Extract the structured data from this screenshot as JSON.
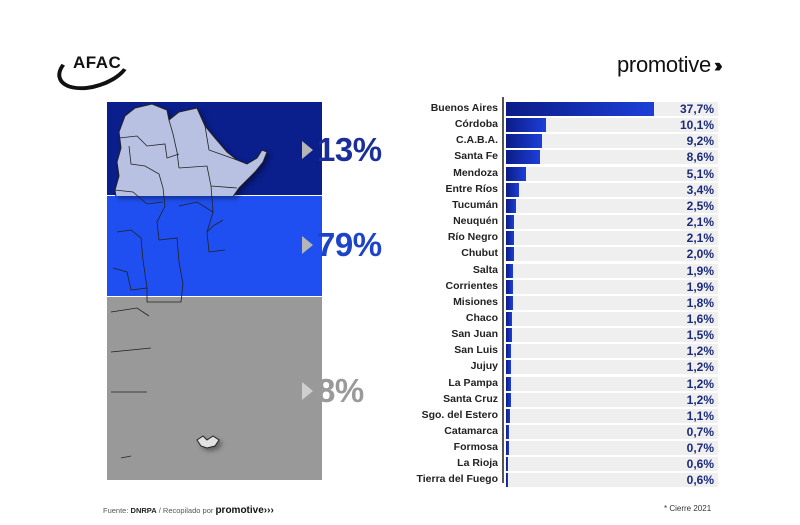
{
  "header": {
    "left_logo": "AFAC",
    "right_logo": "promotive",
    "right_logo_mark": "›››"
  },
  "map": {
    "regions": [
      {
        "name": "north",
        "label": "13%",
        "color": "#0a1e8c",
        "label_color": "#1a2f99"
      },
      {
        "name": "center",
        "label": "79%",
        "color": "#1f4ff0",
        "label_color": "#1d43c9"
      },
      {
        "name": "south",
        "label": "8%",
        "color": "#999999",
        "label_color": "#9a9a9a"
      }
    ],
    "colors": {
      "north_provinces": "#b9c1e2",
      "center_provinces": "#c9d6f7",
      "south_provinces": "#e2e2e2"
    }
  },
  "chart_data": {
    "type": "bar",
    "orientation": "horizontal",
    "title": "",
    "xlabel": "",
    "ylabel": "",
    "unit": "%",
    "categories": [
      "Buenos Aires",
      "Córdoba",
      "C.A.B.A.",
      "Santa Fe",
      "Mendoza",
      "Entre Ríos",
      "Tucumán",
      "Neuquén",
      "Río Negro",
      "Chubut",
      "Salta",
      "Corrientes",
      "Misiones",
      "Chaco",
      "San Juan",
      "San Luis",
      "Jujuy",
      "La Pampa",
      "Santa Cruz",
      "Sgo. del Estero",
      "Catamarca",
      "Formosa",
      "La Rioja",
      "Tierra del Fuego"
    ],
    "values": [
      37.7,
      10.1,
      9.2,
      8.6,
      5.1,
      3.4,
      2.5,
      2.1,
      2.1,
      2.0,
      1.9,
      1.9,
      1.8,
      1.6,
      1.5,
      1.2,
      1.2,
      1.2,
      1.2,
      1.1,
      0.7,
      0.7,
      0.6,
      0.6
    ],
    "value_labels": [
      "37,7%",
      "10,1%",
      "9,2%",
      "8,6%",
      "5,1%",
      "3,4%",
      "2,5%",
      "2,1%",
      "2,1%",
      "2,0%",
      "1,9%",
      "1,9%",
      "1,8%",
      "1,6%",
      "1,5%",
      "1,2%",
      "1,2%",
      "1,2%",
      "1,2%",
      "1,1%",
      "0,7%",
      "0,7%",
      "0,6%",
      "0,6%"
    ],
    "bar_color": "#1d3fd8",
    "grid": false,
    "legend": null
  },
  "footer": {
    "source_prefix": "Fuente: ",
    "source_name": "DNRPA",
    "source_mid": " / Recopilado por ",
    "source_brand": "promotive",
    "source_brand_mark": "›››",
    "note": "* Cierre 2021"
  }
}
